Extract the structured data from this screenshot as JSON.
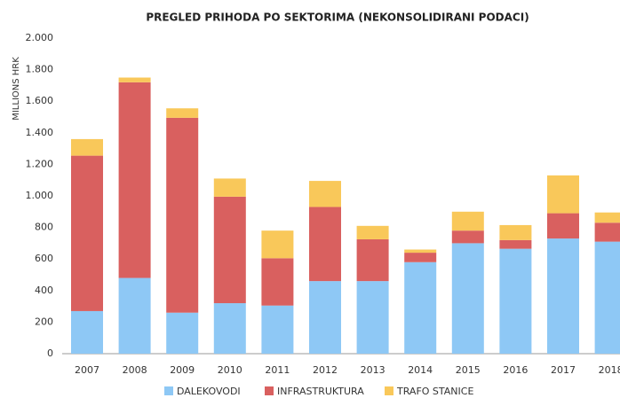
{
  "chart_data": {
    "type": "stacked_bar",
    "title": "PREGLED PRIHODA PO SEKTORIMA (NEKONSOLIDIRANI PODACI)",
    "y_label": "MILLIONS HRK",
    "categories": [
      "2007",
      "2008",
      "2009",
      "2010",
      "2011",
      "2012",
      "2013",
      "2014",
      "2015",
      "2016",
      "2017",
      "2018"
    ],
    "series": [
      {
        "name": "DALEKOVODI",
        "color": "#8ec8f5",
        "values": [
          270,
          480,
          260,
          320,
          305,
          460,
          460,
          580,
          700,
          665,
          730,
          710
        ]
      },
      {
        "name": "INFRASTRUKTURA",
        "color": "#d9605f",
        "values": [
          985,
          1240,
          1235,
          675,
          300,
          470,
          265,
          60,
          80,
          55,
          160,
          120
        ]
      },
      {
        "name": "TRAFO STANICE",
        "color": "#f9c85a",
        "values": [
          105,
          30,
          60,
          115,
          175,
          165,
          85,
          20,
          120,
          95,
          240,
          65
        ]
      }
    ],
    "ylim": [
      0,
      2000
    ],
    "yticks": [
      0,
      200,
      400,
      600,
      800,
      {
        "value": 1000,
        "label": "1.000"
      },
      {
        "value": 1200,
        "label": "1.200"
      },
      {
        "value": 1400,
        "label": "1.400"
      },
      {
        "value": 1600,
        "label": "1.600"
      },
      {
        "value": 1800,
        "label": "1.800"
      },
      {
        "value": 2000,
        "label": "2.000"
      }
    ],
    "grid": false,
    "legend": "bottom"
  }
}
